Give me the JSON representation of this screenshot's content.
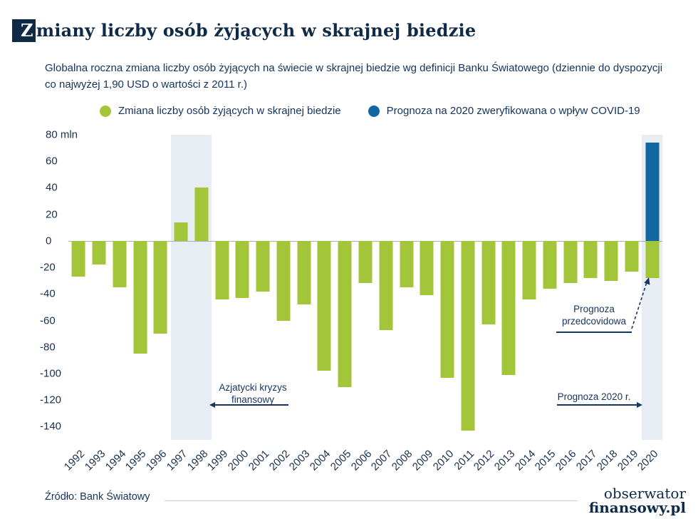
{
  "header": {
    "title_first_letter": "Z",
    "title_rest": "miany liczby osób żyjących w skrajnej biedzie",
    "title": "Zmiany liczby osób żyjących w skrajnej biedzie"
  },
  "subtitle": "Globalna roczna zmiana liczby osób żyjących na świecie w skrajnej biedzie wg definicji Banku Światowego (dziennie do dyspozycji co najwyżej 1,90 USD o wartości z 2011 r.)",
  "legend": [
    {
      "label": "Zmiana liczby osób żyjących w skrajnej biedzie",
      "color": "#a3c53a"
    },
    {
      "label": "Prognoza na 2020 zweryfikowana o wpływ COVID-19",
      "color": "#1168a0"
    }
  ],
  "annotations": {
    "asian_crisis": "Azjatycki kryzys finansowy",
    "precovid_forecast": "Prognoza przedcovidowa",
    "forecast_2020": "Prognoza 2020 r."
  },
  "footer": {
    "source": "Źródło: Bank Światowy",
    "logo_line1": "obserwator",
    "logo_line2": "finansowy.pl"
  },
  "colors": {
    "bar_green": "#a3c53a",
    "bar_blue": "#1168a0",
    "navy": "#0e2a47",
    "band": "#e8ecf3"
  },
  "chart_data": {
    "type": "bar",
    "title": "Zmiany liczby osób żyjących w skrajnej biedzie",
    "xlabel": "",
    "ylabel": "",
    "ytick_unit": "mln",
    "ylim": [
      -150,
      80
    ],
    "yticks": [
      80,
      60,
      40,
      20,
      0,
      -20,
      -40,
      -60,
      -80,
      -100,
      -120,
      -140
    ],
    "grid": false,
    "legend_position": "top",
    "categories": [
      "1992",
      "1993",
      "1994",
      "1995",
      "1996",
      "1997",
      "1998",
      "1999",
      "2000",
      "2001",
      "2002",
      "2003",
      "2004",
      "2005",
      "2006",
      "2007",
      "2008",
      "2009",
      "2010",
      "2011",
      "2012",
      "2013",
      "2014",
      "2015",
      "2016",
      "2017",
      "2018",
      "2019",
      "2020"
    ],
    "series": [
      {
        "name": "Zmiana liczby osób żyjących w skrajnej biedzie",
        "color": "#a3c53a",
        "values": [
          -27,
          -18,
          -35,
          -85,
          -70,
          14,
          40,
          -44,
          -43,
          -38,
          -60,
          -48,
          -98,
          -110,
          -32,
          -67,
          -35,
          -41,
          -103,
          -143,
          -63,
          -101,
          -44,
          -36,
          -32,
          -28,
          -30,
          -23,
          -28
        ]
      },
      {
        "name": "Prognoza na 2020 zweryfikowana o wpływ COVID-19",
        "color": "#1168a0",
        "values": [
          null,
          null,
          null,
          null,
          null,
          null,
          null,
          null,
          null,
          null,
          null,
          null,
          null,
          null,
          null,
          null,
          null,
          null,
          null,
          null,
          null,
          null,
          null,
          null,
          null,
          null,
          null,
          null,
          74
        ]
      }
    ],
    "highlight_bands": [
      {
        "from": "1997",
        "to": "1998"
      },
      {
        "from": "2020",
        "to": "2020"
      }
    ]
  }
}
